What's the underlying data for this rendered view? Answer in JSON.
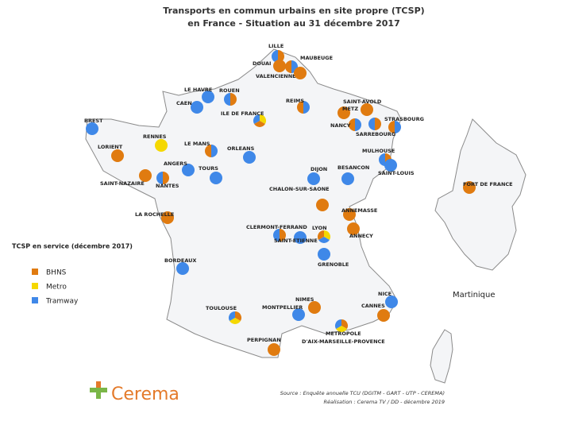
{
  "title": [
    "Transports en commun urbains en site propre (TCSP)",
    "en France - Situation au 31 décembre 2017"
  ],
  "legend": {
    "title": "TCSP en service (décembre 2017)",
    "items": [
      "BHNS",
      "Metro",
      "Tramway"
    ]
  },
  "cities": [
    "LILLE",
    "DOUAI",
    "VALENCIENNES",
    "MAUBEUGE",
    "LE HAVRE",
    "ROUEN",
    "CAEN",
    "REIMS",
    "SAINT-AVOLD",
    "METZ",
    "NANCY",
    "STRASBOURG",
    "SARREBOURG",
    "BREST",
    "ILE DE FRANCE",
    "LORIENT",
    "RENNES",
    "LE MANS",
    "ORLEANS",
    "MULHOUSE",
    "SAINT-LOUIS",
    "ANGERS",
    "TOURS",
    "SAINT-NAZAIRE",
    "NANTES",
    "DIJON",
    "BESANCON",
    "CHALON-SUR-SAONE",
    "ANNEMASSE",
    "ANNECY",
    "LA ROCHELLE",
    "CLERMONT-FERRAND",
    "LYON",
    "SAINT-ETIENNE",
    "GRENOBLE",
    "BORDEAUX",
    "NIMES",
    "MONTPELLIER",
    "NICE",
    "CANNES",
    "TOULOUSE",
    "METROPOLE",
    "D'AIX-MARSEILLE-PROVENCE",
    "PERPIGNAN",
    "FORT DE FRANCE"
  ],
  "inset_label": "Martinique",
  "source": [
    "Source : Enquête annuelle TCU (DGITM - GART - UTP - CEREMA)",
    "Réalisation : Cerema TV / DD - décembre 2019"
  ],
  "logo": "Cerema"
}
